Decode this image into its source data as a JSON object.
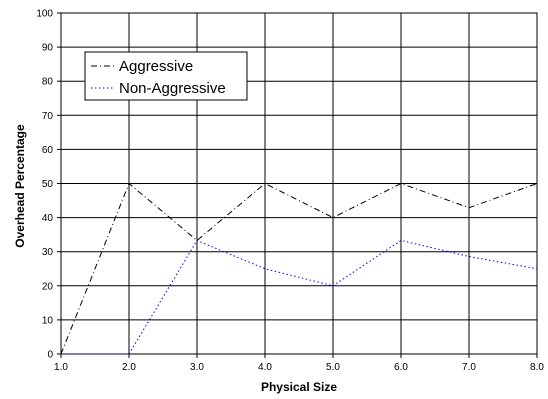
{
  "chart_data": {
    "type": "line",
    "title": "",
    "xlabel": "Physical Size",
    "ylabel": "Overhead Percentage",
    "x": [
      1.0,
      2.0,
      3.0,
      4.0,
      5.0,
      6.0,
      7.0,
      8.0
    ],
    "x_tick_labels": [
      "1.0",
      "2.0",
      "3.0",
      "4.0",
      "5.0",
      "6.0",
      "7.0",
      "8.0"
    ],
    "y_tick_labels": [
      "0",
      "10",
      "20",
      "30",
      "40",
      "50",
      "60",
      "70",
      "80",
      "90",
      "100"
    ],
    "xlim": [
      1.0,
      8.0
    ],
    "ylim": [
      0,
      100
    ],
    "grid": true,
    "legend_position": "top-left",
    "series": [
      {
        "name": "Aggressive",
        "values": [
          0,
          50,
          33.3,
          50,
          40,
          50,
          42.9,
          50
        ],
        "color": "#000000",
        "dash": "dash-dot"
      },
      {
        "name": "Non-Aggressive",
        "values": [
          0,
          0,
          33.3,
          25,
          20,
          33.3,
          28.6,
          25
        ],
        "color": "#0000ff",
        "dash": "dotted"
      }
    ]
  }
}
